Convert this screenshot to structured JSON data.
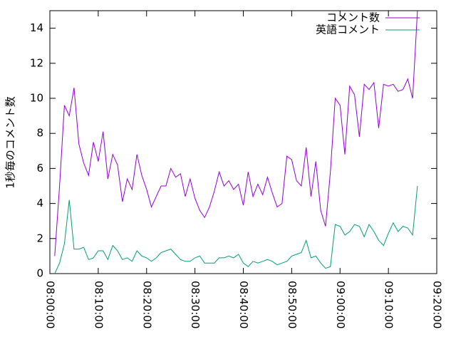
{
  "chart_data": {
    "type": "line",
    "ylabel": "1秒毎のコメント数",
    "x": [
      "08:01:00",
      "08:02:00",
      "08:03:00",
      "08:04:00",
      "08:05:00",
      "08:06:00",
      "08:07:00",
      "08:08:00",
      "08:09:00",
      "08:10:00",
      "08:11:00",
      "08:12:00",
      "08:13:00",
      "08:14:00",
      "08:15:00",
      "08:16:00",
      "08:17:00",
      "08:18:00",
      "08:19:00",
      "08:20:00",
      "08:21:00",
      "08:22:00",
      "08:23:00",
      "08:24:00",
      "08:25:00",
      "08:26:00",
      "08:27:00",
      "08:28:00",
      "08:29:00",
      "08:30:00",
      "08:31:00",
      "08:32:00",
      "08:33:00",
      "08:34:00",
      "08:35:00",
      "08:36:00",
      "08:37:00",
      "08:38:00",
      "08:39:00",
      "08:40:00",
      "08:41:00",
      "08:42:00",
      "08:43:00",
      "08:44:00",
      "08:45:00",
      "08:46:00",
      "08:47:00",
      "08:48:00",
      "08:49:00",
      "08:50:00",
      "08:51:00",
      "08:52:00",
      "08:53:00",
      "08:54:00",
      "08:55:00",
      "08:56:00",
      "08:57:00",
      "08:58:00",
      "08:59:00",
      "09:00:00",
      "09:01:00",
      "09:02:00",
      "09:03:00",
      "09:04:00",
      "09:05:00",
      "09:06:00",
      "09:07:00",
      "09:08:00",
      "09:09:00",
      "09:10:00",
      "09:11:00",
      "09:12:00",
      "09:13:00",
      "09:14:00",
      "09:15:00",
      "09:16:00"
    ],
    "series": [
      {
        "name": "コメント数",
        "color": "#9400d3",
        "values": [
          1.0,
          5.0,
          9.6,
          9.0,
          10.6,
          7.4,
          6.3,
          5.6,
          7.5,
          6.4,
          8.1,
          5.4,
          6.8,
          6.2,
          4.1,
          5.4,
          4.8,
          6.8,
          5.6,
          4.8,
          3.8,
          4.4,
          5.0,
          5.0,
          6.0,
          5.5,
          5.7,
          4.4,
          5.4,
          4.3,
          3.6,
          3.2,
          3.8,
          4.7,
          5.8,
          5.0,
          5.3,
          4.8,
          5.1,
          3.9,
          5.8,
          4.4,
          5.1,
          4.5,
          5.5,
          4.6,
          3.8,
          4.0,
          6.7,
          6.5,
          5.3,
          5.0,
          7.2,
          4.4,
          6.4,
          3.6,
          2.7,
          5.8,
          10.0,
          9.6,
          6.8,
          10.7,
          10.2,
          7.8,
          10.8,
          10.5,
          10.9,
          8.3,
          10.8,
          10.7,
          10.8,
          10.4,
          10.5,
          11.1,
          10.0,
          15.0
        ]
      },
      {
        "name": "英語コメント",
        "color": "#009e73",
        "values": [
          0.0,
          0.6,
          1.7,
          4.2,
          1.4,
          1.4,
          1.5,
          0.8,
          0.9,
          1.3,
          1.3,
          0.8,
          1.6,
          1.3,
          0.8,
          0.9,
          0.7,
          1.3,
          1.0,
          0.9,
          0.7,
          0.9,
          1.2,
          1.3,
          1.4,
          1.1,
          0.8,
          0.7,
          0.7,
          0.9,
          1.0,
          0.6,
          0.6,
          0.6,
          0.9,
          0.9,
          1.0,
          0.9,
          1.1,
          0.6,
          0.4,
          0.7,
          0.6,
          0.7,
          0.8,
          0.7,
          0.5,
          0.6,
          0.7,
          1.0,
          1.1,
          1.2,
          1.9,
          0.9,
          1.0,
          0.6,
          0.3,
          0.4,
          2.8,
          2.7,
          2.2,
          2.4,
          2.8,
          2.7,
          2.1,
          2.8,
          2.4,
          1.9,
          1.6,
          2.3,
          2.9,
          2.4,
          2.7,
          2.6,
          2.2,
          5.0
        ]
      }
    ],
    "xlim": [
      "08:00:00",
      "09:20:00"
    ],
    "xticks": [
      "08:00:00",
      "08:10:00",
      "08:20:00",
      "08:30:00",
      "08:40:00",
      "08:50:00",
      "09:00:00",
      "09:10:00",
      "09:20:00"
    ],
    "ylim": [
      0,
      15
    ],
    "yticks": [
      0,
      2,
      4,
      6,
      8,
      10,
      12,
      14
    ],
    "grid": false,
    "legend": "top-right"
  }
}
